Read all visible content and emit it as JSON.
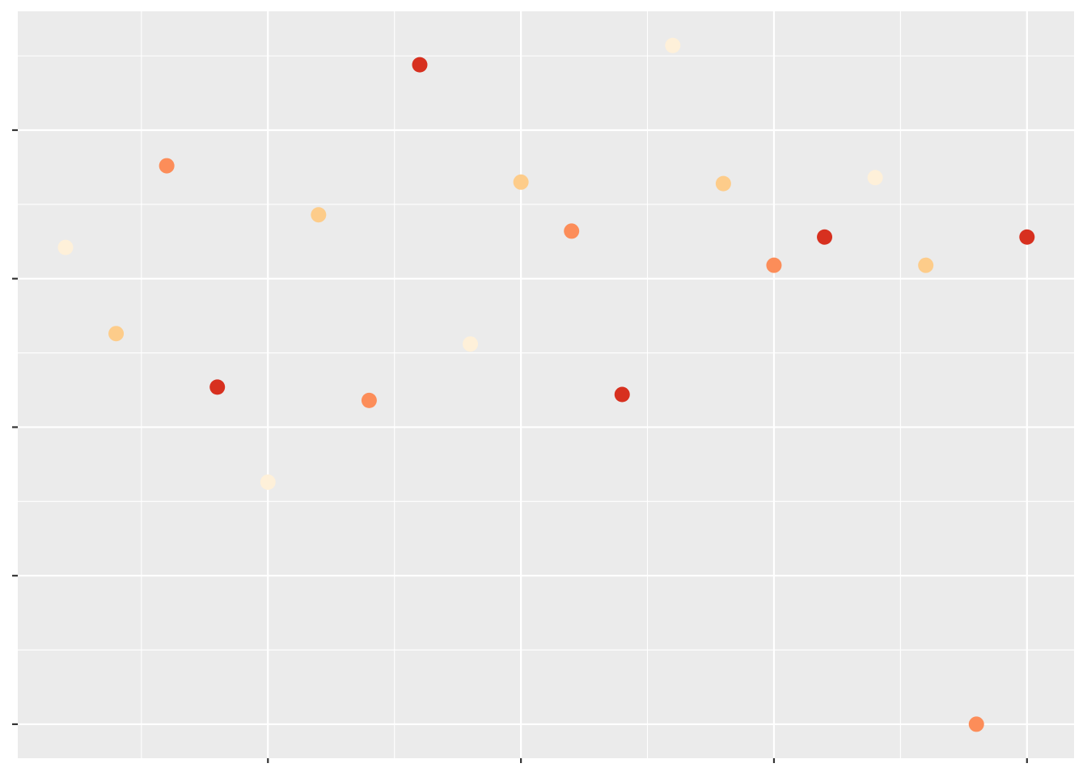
{
  "chart_data": {
    "type": "scatter",
    "title": "",
    "xlabel": "",
    "ylabel": "",
    "x": [
      1,
      2,
      3,
      4,
      5,
      6,
      7,
      8,
      9,
      10,
      11,
      12,
      13,
      14,
      15,
      16,
      17,
      18,
      19,
      20
    ],
    "y": [
      3.21,
      2.63,
      3.76,
      2.27,
      1.63,
      3.43,
      2.18,
      4.44,
      2.56,
      3.65,
      3.32,
      2.22,
      4.57,
      3.64,
      3.09,
      3.28,
      3.68,
      3.09,
      0.0,
      3.28
    ],
    "group": [
      1,
      2,
      3,
      4,
      1,
      2,
      3,
      4,
      1,
      2,
      3,
      4,
      1,
      2,
      3,
      4,
      1,
      2,
      3,
      4
    ],
    "group_colors": [
      "#FEF0D9",
      "#FDCC8A",
      "#FC8D59",
      "#D7301F"
    ],
    "xlim": [
      0.057,
      20.93
    ],
    "ylim": [
      -0.229,
      4.8
    ],
    "x_ticks": [
      5,
      10,
      15,
      20
    ],
    "y_ticks": [
      0,
      1,
      2,
      3,
      4
    ],
    "grid": true,
    "legend": "none",
    "panel_background": "#EBEBEB"
  }
}
